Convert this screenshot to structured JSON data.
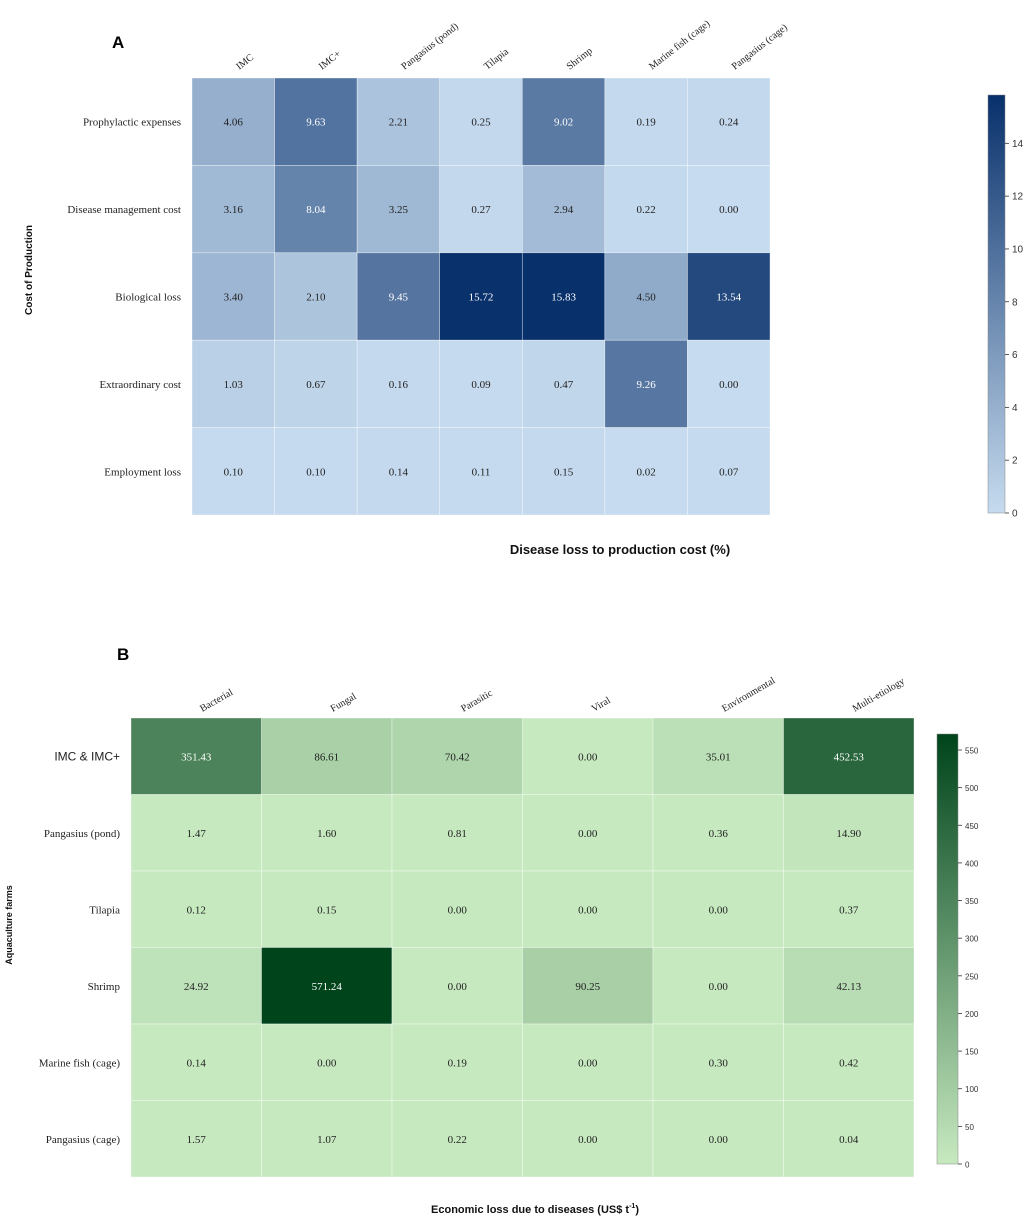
{
  "chart_data": [
    {
      "type": "heatmap",
      "panel": "A",
      "columns": [
        "IMC",
        "IMC+",
        "Pangasius (pond)",
        "Tilapia",
        "Shrimp",
        "Marine fish (cage)",
        "Pangasius (cage)"
      ],
      "rows": [
        "Prophylactic expenses",
        "Disease management cost",
        "Biological loss",
        "Extraordinary cost",
        "Employment loss"
      ],
      "values": [
        [
          4.06,
          9.63,
          2.21,
          0.25,
          9.02,
          0.19,
          0.24
        ],
        [
          3.16,
          8.04,
          3.25,
          0.27,
          2.94,
          0.22,
          0.0
        ],
        [
          3.4,
          2.1,
          9.45,
          15.72,
          15.83,
          4.5,
          13.54
        ],
        [
          1.03,
          0.67,
          0.16,
          0.09,
          0.47,
          9.26,
          0.0
        ],
        [
          0.1,
          0.1,
          0.14,
          0.11,
          0.15,
          0.02,
          0.07
        ]
      ],
      "cell_labels": [
        [
          "4.06",
          "9.63",
          "2.21",
          "0.25",
          "9.02",
          "0.19",
          "0.24"
        ],
        [
          "3.16",
          "8.04",
          "3.25",
          "0.27",
          "2.94",
          "0.22",
          "0.00"
        ],
        [
          "3.40",
          "2.10",
          "9.45",
          "15.72",
          "15.83",
          "4.50",
          "13.54"
        ],
        [
          "1.03",
          "0.67",
          "0.16",
          "0.09",
          "0.47",
          "9.26",
          "0.00"
        ],
        [
          "0.10",
          "0.10",
          "0.14",
          "0.11",
          "0.15",
          "0.02",
          "0.07"
        ]
      ],
      "xlabel": "Disease loss to production cost (%)",
      "ylabel": "Cost of Production",
      "colorbar": {
        "min": 0,
        "max": 15.83,
        "ticks": [
          0,
          2,
          4,
          6,
          8,
          10,
          12,
          14
        ]
      },
      "colormap": "Blues",
      "color_low": "#c6dbef",
      "color_high": "#08306b"
    },
    {
      "type": "heatmap",
      "panel": "B",
      "columns": [
        "Bacterial",
        "Fungal",
        "Parasitic",
        "Viral",
        "Environmental",
        "Multi-etiology"
      ],
      "rows": [
        "IMC & IMC+",
        "Pangasius (pond)",
        "Tilapia",
        "Shrimp",
        "Marine fish (cage)",
        "Pangasius (cage)"
      ],
      "values": [
        [
          351.43,
          86.61,
          70.42,
          0.0,
          35.01,
          452.53
        ],
        [
          1.47,
          1.6,
          0.81,
          0.0,
          0.36,
          14.9
        ],
        [
          0.12,
          0.15,
          0.0,
          0.0,
          0.0,
          0.37
        ],
        [
          24.92,
          571.24,
          0.0,
          90.25,
          0.0,
          42.13
        ],
        [
          0.14,
          0.0,
          0.19,
          0.0,
          0.3,
          0.42
        ],
        [
          1.57,
          1.07,
          0.22,
          0.0,
          0.0,
          0.04
        ]
      ],
      "cell_labels": [
        [
          "351.43",
          "86.61",
          "70.42",
          "0.00",
          "35.01",
          "452.53"
        ],
        [
          "1.47",
          "1.60",
          "0.81",
          "0.00",
          "0.36",
          "14.90"
        ],
        [
          "0.12",
          "0.15",
          "0.00",
          "0.00",
          "0.00",
          "0.37"
        ],
        [
          "24.92",
          "571.24",
          "0.00",
          "90.25",
          "0.00",
          "42.13"
        ],
        [
          "0.14",
          "0.00",
          "0.19",
          "0.00",
          "0.30",
          "0.42"
        ],
        [
          "1.57",
          "1.07",
          "0.22",
          "0.00",
          "0.00",
          "0.04"
        ]
      ],
      "xlabel": "Economic loss due to diseases (US$ t",
      "xlabel_superscript": "-1",
      "xlabel_suffix": ")",
      "ylabel": "Aquaculture farms",
      "colorbar": {
        "min": 0,
        "max": 571.24,
        "ticks": [
          0,
          50,
          100,
          150,
          200,
          250,
          300,
          350,
          400,
          450,
          500,
          550
        ]
      },
      "colormap": "Greens",
      "color_low": "#c7e9c0",
      "color_high": "#00441b"
    }
  ]
}
